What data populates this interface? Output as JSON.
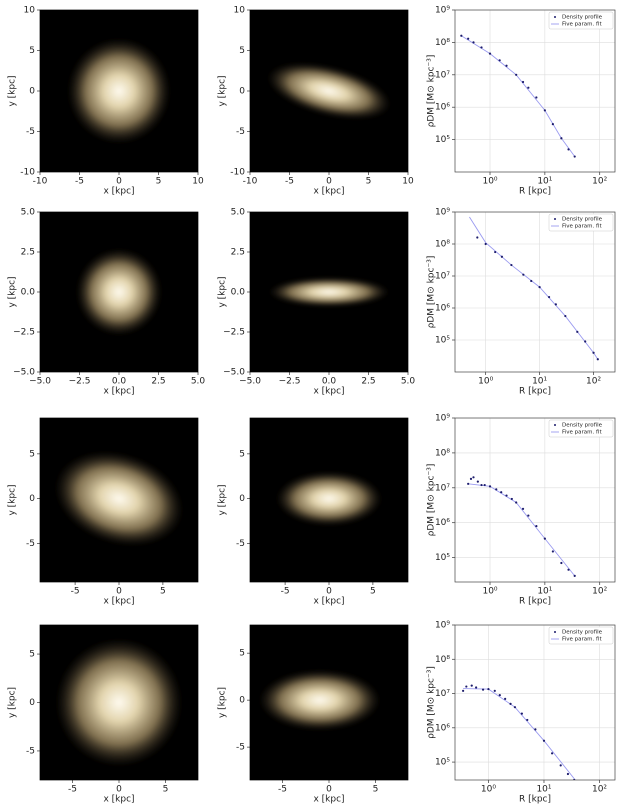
{
  "chart_data": [
    {
      "type": "image",
      "xlabel": "x [kpc]",
      "ylabel": "y [kpc]",
      "xlim": [
        -10,
        10
      ],
      "ylim": [
        -10,
        10
      ],
      "xticks": [
        -10,
        -5,
        0,
        5,
        10
      ],
      "yticks": [
        -10,
        -5,
        0,
        5,
        10
      ]
    },
    {
      "type": "image",
      "xlabel": "x [kpc]",
      "ylabel": "y [kpc]",
      "xlim": [
        -10,
        10
      ],
      "ylim": [
        -10,
        10
      ],
      "xticks": [
        -10,
        -5,
        0,
        5,
        10
      ],
      "yticks": [
        -10,
        -5,
        0,
        5,
        10
      ]
    },
    {
      "type": "scatter",
      "xlabel": "R [kpc]",
      "ylabel": "ρDM [M⊙ kpc⁻³]",
      "log_scale": true,
      "grid": true,
      "legend": "upper right",
      "xlim": [
        0.23,
        190
      ],
      "ylim": [
        10000,
        1000000000
      ],
      "xticks": [
        {
          "value": 1,
          "label": "10⁰"
        },
        {
          "value": 10,
          "label": "10¹"
        },
        {
          "value": 100,
          "label": "10²"
        }
      ],
      "yticks": [
        {
          "value": 100000,
          "label": "10⁵"
        },
        {
          "value": 1000000,
          "label": "10⁶"
        },
        {
          "value": 10000000,
          "label": "10⁷"
        },
        {
          "value": 100000000,
          "label": "10⁸"
        },
        {
          "value": 1000000000,
          "label": "10⁹"
        }
      ],
      "series": [
        {
          "name": "Density profile",
          "color": "#1c1c6b",
          "marker": "dot",
          "x": [
            0.3,
            0.4,
            0.5,
            0.7,
            1,
            1.5,
            2,
            3,
            4,
            5,
            7,
            10,
            14,
            20,
            27,
            35
          ],
          "values": [
            160000000.0,
            130000000.0,
            100000000.0,
            70000000.0,
            45000000.0,
            28000000.0,
            19000000.0,
            10000000.0,
            6000000.0,
            4000000.0,
            2000000.0,
            800000.0,
            300000.0,
            110000.0,
            50000.0,
            30000.0
          ]
        },
        {
          "name": "Five param. fit",
          "color": "#9b9bf0",
          "marker": "line",
          "x": [
            0.3,
            1,
            3,
            10,
            20,
            35
          ],
          "values": [
            160000000.0,
            45000000.0,
            10000000.0,
            800000.0,
            110000.0,
            30000.0
          ]
        }
      ]
    },
    {
      "type": "image",
      "xlabel": "x [kpc]",
      "ylabel": "y [kpc]",
      "xlim": [
        -5,
        5
      ],
      "ylim": [
        -5,
        5
      ],
      "xticks": [
        {
          "value": -5,
          "label": "−5.0"
        },
        {
          "value": -2.5,
          "label": "−2.5"
        },
        {
          "value": 0,
          "label": "0.0"
        },
        {
          "value": 2.5,
          "label": "2.5"
        },
        {
          "value": 5,
          "label": "5.0"
        }
      ],
      "yticks": [
        {
          "value": -5,
          "label": "−5.0"
        },
        {
          "value": -2.5,
          "label": "−2.5"
        },
        {
          "value": 0,
          "label": "0.0"
        },
        {
          "value": 2.5,
          "label": "2.5"
        },
        {
          "value": 5,
          "label": "5.0"
        }
      ]
    },
    {
      "type": "image",
      "xlabel": "x [kpc]",
      "ylabel": "y [kpc]",
      "xlim": [
        -5,
        5
      ],
      "ylim": [
        -5,
        5
      ],
      "xticks": [
        {
          "value": -5,
          "label": "−5.0"
        },
        {
          "value": -2.5,
          "label": "−2.5"
        },
        {
          "value": 0,
          "label": "0.0"
        },
        {
          "value": 2.5,
          "label": "2.5"
        },
        {
          "value": 5,
          "label": "5.0"
        }
      ],
      "yticks": [
        {
          "value": -5,
          "label": "−5.0"
        },
        {
          "value": -2.5,
          "label": "−2.5"
        },
        {
          "value": 0,
          "label": "0.0"
        },
        {
          "value": 2.5,
          "label": "2.5"
        },
        {
          "value": 5,
          "label": "5.0"
        }
      ]
    },
    {
      "type": "scatter",
      "xlabel": "R [kpc]",
      "ylabel": "ρDM [M⊙ kpc⁻³]",
      "log_scale": true,
      "grid": true,
      "legend": "upper right",
      "xlim": [
        0.27,
        250
      ],
      "ylim": [
        10000,
        1000000000
      ],
      "xticks": [
        {
          "value": 1,
          "label": "10⁰"
        },
        {
          "value": 10,
          "label": "10¹"
        },
        {
          "value": 100,
          "label": "10²"
        }
      ],
      "yticks": [
        {
          "value": 100000,
          "label": "10⁵"
        },
        {
          "value": 1000000,
          "label": "10⁶"
        },
        {
          "value": 10000000,
          "label": "10⁷"
        },
        {
          "value": 100000000,
          "label": "10⁸"
        },
        {
          "value": 1000000000,
          "label": "10⁹"
        }
      ],
      "series": [
        {
          "name": "Density profile",
          "color": "#1c1c6b",
          "marker": "dot",
          "x": [
            0.7,
            1,
            1.5,
            2,
            3,
            5,
            7,
            10,
            15,
            20,
            30,
            50,
            70,
            100,
            120
          ],
          "values": [
            160000000.0,
            100000000.0,
            56000000.0,
            40000000.0,
            22000000.0,
            11000000.0,
            7000000.0,
            4500000.0,
            2200000.0,
            1300000.0,
            560000.0,
            180000.0,
            90000.0,
            40000.0,
            25000.0
          ]
        },
        {
          "name": "Five param. fit",
          "color": "#9b9bf0",
          "marker": "line",
          "x": [
            0.5,
            1,
            3,
            10,
            30,
            100,
            120
          ],
          "values": [
            700000000.0,
            110000000.0,
            22000000.0,
            4500000.0,
            560000.0,
            40000.0,
            25000.0
          ]
        }
      ]
    },
    {
      "type": "image",
      "xlabel": "x [kpc]",
      "ylabel": "y [kpc]",
      "xlim": [
        -9,
        9
      ],
      "ylim": [
        -9.3,
        9
      ],
      "xticks": [
        -5,
        0,
        5
      ],
      "yticks": [
        -5,
        0,
        5
      ]
    },
    {
      "type": "image",
      "xlabel": "x [kpc]",
      "ylabel": "y [kpc]",
      "xlim": [
        -9,
        9
      ],
      "ylim": [
        -9.3,
        9
      ],
      "xticks": [
        -5,
        0,
        5
      ],
      "yticks": [
        -5,
        0,
        5
      ]
    },
    {
      "type": "scatter",
      "xlabel": "R [kpc]",
      "ylabel": "ρDM [M⊙ kpc⁻³]",
      "log_scale": true,
      "grid": true,
      "legend": "upper right",
      "xlim": [
        0.23,
        190
      ],
      "ylim": [
        20000,
        1000000000
      ],
      "xticks": [
        {
          "value": 1,
          "label": "10⁰"
        },
        {
          "value": 10,
          "label": "10¹"
        },
        {
          "value": 100,
          "label": "10²"
        }
      ],
      "yticks": [
        {
          "value": 100000,
          "label": "10⁵"
        },
        {
          "value": 1000000,
          "label": "10⁶"
        },
        {
          "value": 10000000,
          "label": "10⁷"
        },
        {
          "value": 100000000,
          "label": "10⁸"
        },
        {
          "value": 1000000000,
          "label": "10⁹"
        }
      ],
      "series": [
        {
          "name": "Density profile",
          "color": "#1c1c6b",
          "marker": "dot",
          "x": [
            0.4,
            0.45,
            0.5,
            0.6,
            0.7,
            0.8,
            1,
            1.3,
            1.6,
            2,
            2.5,
            3,
            4,
            5,
            7,
            10,
            14,
            20,
            27,
            35
          ],
          "values": [
            13000000.0,
            18000000.0,
            20000000.0,
            15000000.0,
            12000000.0,
            12000000.0,
            11000000.0,
            9000000.0,
            7500000.0,
            6000000.0,
            4800000.0,
            3800000.0,
            2500000.0,
            1600000.0,
            800000.0,
            350000.0,
            150000.0,
            70000.0,
            45000.0,
            30000.0
          ]
        },
        {
          "name": "Five param. fit",
          "color": "#9b9bf0",
          "marker": "line",
          "x": [
            0.4,
            1,
            3,
            10,
            35
          ],
          "values": [
            13000000.0,
            11000000.0,
            3800000.0,
            350000.0,
            30000.0
          ]
        }
      ]
    },
    {
      "type": "image",
      "xlabel": "x [kpc]",
      "ylabel": "y [kpc]",
      "xlim": [
        -8.5,
        8.5
      ],
      "ylim": [
        -8,
        8
      ],
      "xticks": [
        -5,
        0,
        5
      ],
      "yticks": [
        -5,
        0,
        5
      ]
    },
    {
      "type": "image",
      "xlabel": "x [kpc]",
      "ylabel": "y [kpc]",
      "xlim": [
        -8.5,
        8.5
      ],
      "ylim": [
        -8.5,
        8
      ],
      "xticks": [
        -5,
        0,
        5
      ],
      "yticks": [
        -5,
        0,
        5
      ]
    },
    {
      "type": "scatter",
      "xlabel": "R [kpc]",
      "ylabel": "ρDM [M⊙ kpc⁻³]",
      "log_scale": true,
      "grid": true,
      "legend": "upper right",
      "xlim": [
        0.25,
        190
      ],
      "ylim": [
        30000,
        1000000000
      ],
      "xticks": [
        {
          "value": 1,
          "label": "10⁰"
        },
        {
          "value": 10,
          "label": "10¹"
        },
        {
          "value": 100,
          "label": "10²"
        }
      ],
      "yticks": [
        {
          "value": 100000,
          "label": "10⁵"
        },
        {
          "value": 1000000,
          "label": "10⁶"
        },
        {
          "value": 10000000,
          "label": "10⁷"
        },
        {
          "value": 100000000,
          "label": "10⁸"
        },
        {
          "value": 1000000000,
          "label": "10⁹"
        }
      ],
      "series": [
        {
          "name": "Density profile",
          "color": "#1c1c6b",
          "marker": "dot",
          "x": [
            0.35,
            0.4,
            0.5,
            0.6,
            0.8,
            1,
            1.3,
            1.6,
            2,
            2.5,
            3,
            4,
            5,
            7,
            10,
            14,
            20,
            27,
            35,
            40
          ],
          "values": [
            12000000.0,
            16000000.0,
            17000000.0,
            15000000.0,
            13000000.0,
            13500000.0,
            12000000.0,
            9000000.0,
            7000000.0,
            5000000.0,
            4000000.0,
            2600000.0,
            1700000.0,
            900000.0,
            420000.0,
            180000.0,
            80000.0,
            45000.0,
            30000.0,
            25000.0
          ]
        },
        {
          "name": "Five param. fit",
          "color": "#9b9bf0",
          "marker": "line",
          "x": [
            0.35,
            1,
            3,
            10,
            40
          ],
          "values": [
            14000000.0,
            13500000.0,
            4000000.0,
            420000.0,
            25000.0
          ]
        }
      ]
    }
  ]
}
